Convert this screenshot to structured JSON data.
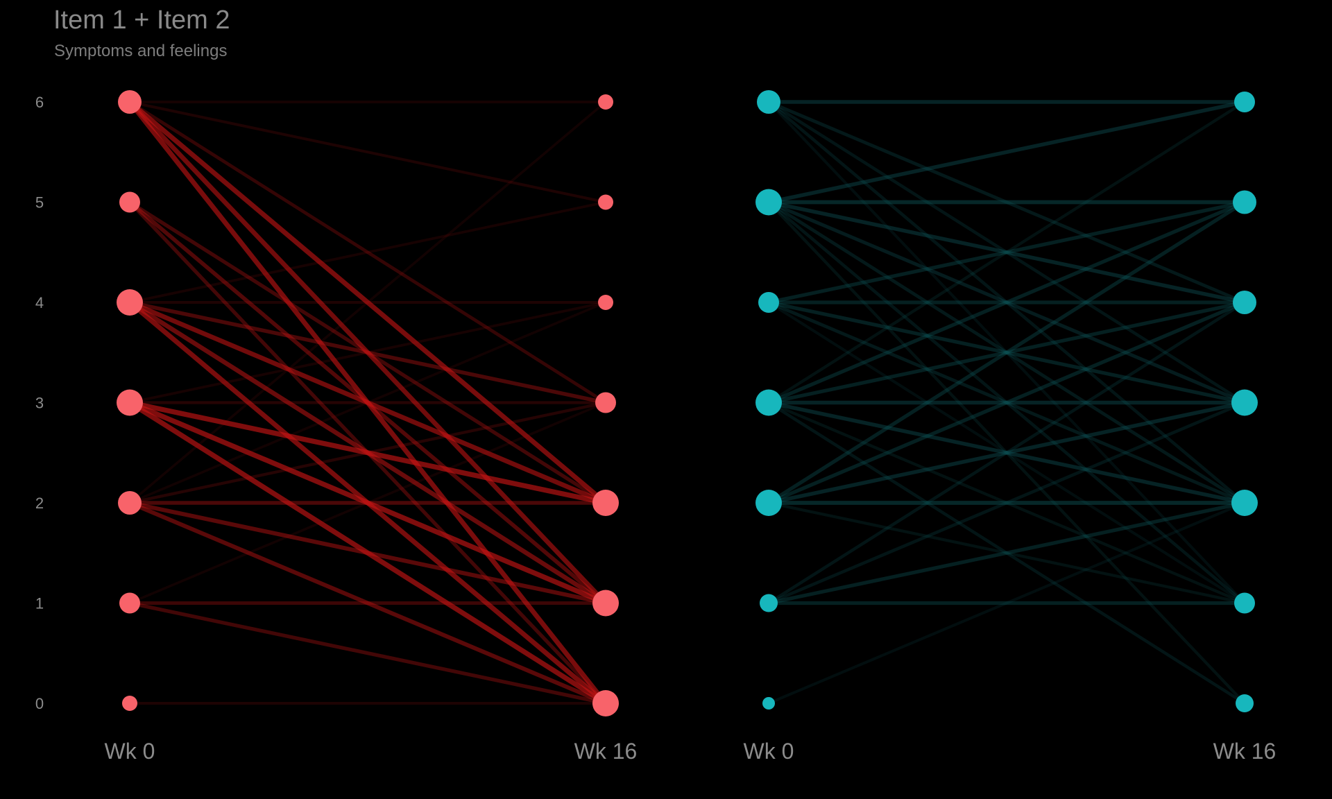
{
  "title": "Item 1 + Item 2",
  "subtitle": "Symptoms and feelings",
  "chart_data": [
    {
      "type": "slopegraph",
      "color": "#f8636a",
      "line_color": "#c81414",
      "x_labels": [
        "Wk 0",
        "Wk 16"
      ],
      "y_ticks": [
        "0",
        "1",
        "2",
        "3",
        "4",
        "5",
        "6"
      ],
      "ylim": [
        0,
        6
      ],
      "start_point_size": [
        2,
        4,
        5,
        6,
        6,
        4,
        5
      ],
      "end_point_size": [
        6,
        6,
        6,
        4,
        2,
        2,
        2
      ],
      "transitions": [
        [
          6,
          0,
          0.8
        ],
        [
          6,
          1,
          0.75
        ],
        [
          6,
          2,
          0.8
        ],
        [
          6,
          3,
          0.35
        ],
        [
          6,
          5,
          0.2
        ],
        [
          6,
          6,
          0.15
        ],
        [
          5,
          0,
          0.45
        ],
        [
          5,
          1,
          0.55
        ],
        [
          5,
          2,
          0.45
        ],
        [
          4,
          0,
          0.8
        ],
        [
          4,
          1,
          0.7
        ],
        [
          4,
          2,
          0.75
        ],
        [
          4,
          3,
          0.5
        ],
        [
          4,
          4,
          0.2
        ],
        [
          4,
          5,
          0.15
        ],
        [
          3,
          0,
          0.85
        ],
        [
          3,
          1,
          0.85
        ],
        [
          3,
          2,
          0.85
        ],
        [
          3,
          3,
          0.25
        ],
        [
          3,
          4,
          0.15
        ],
        [
          2,
          0,
          0.6
        ],
        [
          2,
          1,
          0.6
        ],
        [
          2,
          2,
          0.5
        ],
        [
          2,
          3,
          0.25
        ],
        [
          2,
          4,
          0.12
        ],
        [
          2,
          6,
          0.12
        ],
        [
          1,
          0,
          0.45
        ],
        [
          1,
          1,
          0.4
        ],
        [
          1,
          3,
          0.12
        ],
        [
          0,
          0,
          0.2
        ]
      ]
    },
    {
      "type": "slopegraph",
      "color": "#17b7bd",
      "line_color": "#0f5e62",
      "x_labels": [
        "Wk 0",
        "Wk 16"
      ],
      "y_ticks": [
        "0",
        "1",
        "2",
        "3",
        "4",
        "5",
        "6"
      ],
      "ylim": [
        0,
        6
      ],
      "start_point_size": [
        1,
        3,
        6,
        6,
        4,
        6,
        5
      ],
      "end_point_size": [
        3,
        4,
        6,
        6,
        5,
        5,
        4
      ],
      "transitions": [
        [
          6,
          6,
          0.5
        ],
        [
          6,
          4,
          0.35
        ],
        [
          6,
          3,
          0.3
        ],
        [
          6,
          2,
          0.3
        ],
        [
          6,
          1,
          0.2
        ],
        [
          5,
          6,
          0.5
        ],
        [
          5,
          5,
          0.55
        ],
        [
          5,
          4,
          0.5
        ],
        [
          5,
          3,
          0.4
        ],
        [
          5,
          2,
          0.35
        ],
        [
          5,
          1,
          0.3
        ],
        [
          5,
          0,
          0.25
        ],
        [
          4,
          5,
          0.45
        ],
        [
          4,
          4,
          0.45
        ],
        [
          4,
          3,
          0.45
        ],
        [
          4,
          2,
          0.35
        ],
        [
          4,
          1,
          0.2
        ],
        [
          3,
          6,
          0.25
        ],
        [
          3,
          5,
          0.45
        ],
        [
          3,
          4,
          0.45
        ],
        [
          3,
          3,
          0.5
        ],
        [
          3,
          2,
          0.5
        ],
        [
          3,
          1,
          0.25
        ],
        [
          3,
          0,
          0.3
        ],
        [
          2,
          5,
          0.45
        ],
        [
          2,
          4,
          0.45
        ],
        [
          2,
          3,
          0.5
        ],
        [
          2,
          2,
          0.55
        ],
        [
          2,
          1,
          0.25
        ],
        [
          1,
          4,
          0.3
        ],
        [
          1,
          3,
          0.3
        ],
        [
          1,
          2,
          0.45
        ],
        [
          1,
          1,
          0.45
        ],
        [
          0,
          2,
          0.2
        ]
      ]
    }
  ]
}
